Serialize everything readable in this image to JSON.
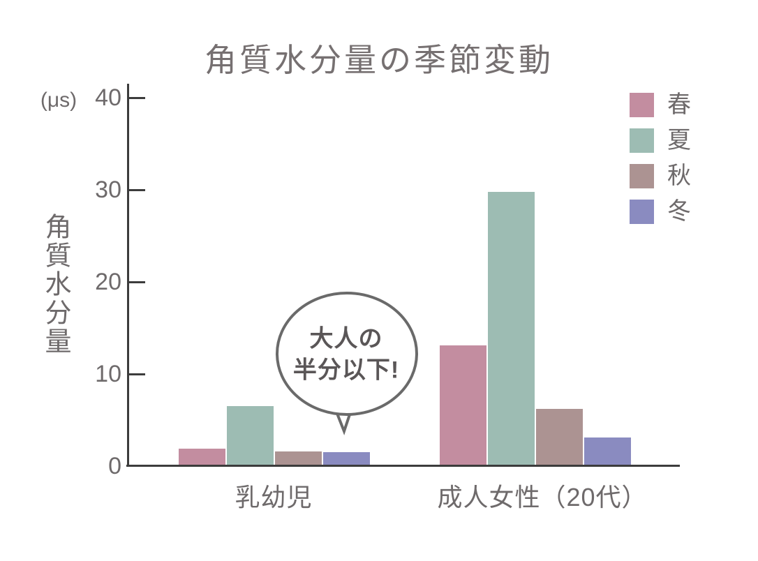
{
  "title": "角質水分量の季節変動",
  "y_axis": {
    "unit": "(μs)",
    "label": "角質水分量",
    "ticks": [
      "0",
      "10",
      "20",
      "30",
      "40"
    ]
  },
  "x_axis": {
    "categories": [
      "乳幼児",
      "成人女性（20代）"
    ]
  },
  "legend": {
    "items": [
      {
        "label": "春",
        "color": "#c38da0"
      },
      {
        "label": "夏",
        "color": "#9dbcb3"
      },
      {
        "label": "秋",
        "color": "#ac9392"
      },
      {
        "label": "冬",
        "color": "#8a8bc0"
      }
    ]
  },
  "annotation": {
    "line1": "大人の",
    "line2": "半分以下!",
    "full_text": "大人の半分以下!",
    "points_to": "乳幼児の冬の棒"
  },
  "colors": {
    "axis": "#3c3c3c",
    "text": "#6e6a6b",
    "bubble_stroke": "#6a6a6a",
    "background": "#ffffff"
  },
  "chart_data": {
    "type": "bar",
    "title": "角質水分量の季節変動",
    "categories": [
      "乳幼児",
      "成人女性（20代）"
    ],
    "series": [
      {
        "name": "春",
        "color": "#c38da0",
        "values": [
          1.9,
          13.1
        ]
      },
      {
        "name": "夏",
        "color": "#9dbcb3",
        "values": [
          6.5,
          29.8
        ]
      },
      {
        "name": "秋",
        "color": "#ac9392",
        "values": [
          1.6,
          6.2
        ]
      },
      {
        "name": "冬",
        "color": "#8a8bc0",
        "values": [
          1.5,
          3.1
        ]
      }
    ],
    "xlabel": "",
    "ylabel": "角質水分量",
    "y_unit": "(μs)",
    "ylim": [
      0,
      40
    ],
    "yticks": [
      0,
      10,
      20,
      30,
      40
    ],
    "grid": false,
    "legend_position": "top-right",
    "annotation": {
      "text": "大人の半分以下!",
      "target_category": "乳幼児",
      "target_series": "冬"
    }
  }
}
